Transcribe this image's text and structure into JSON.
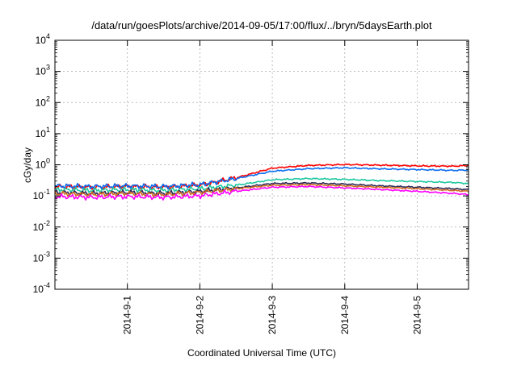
{
  "chart_data": {
    "type": "line",
    "title": "/data/run/goesPlots/archive/2014-09-05/17:00/flux/../bryn/5daysEarth.plot",
    "xlabel": "Coordinated Universal Time (UTC)",
    "ylabel": "cGy/day",
    "yscale": "log",
    "ylim": [
      0.0001,
      10000
    ],
    "xlim": [
      "2014-08-31 00:00",
      "2014-09-05 17:00"
    ],
    "grid": true,
    "legend": "none",
    "x_ticks": [
      "2014-9-1",
      "2014-9-2",
      "2014-9-3",
      "2014-9-4",
      "2014-9-5"
    ],
    "y_ticks": [
      {
        "value": 0.0001,
        "base": "10",
        "exp": "-4"
      },
      {
        "value": 0.001,
        "base": "10",
        "exp": "-3"
      },
      {
        "value": 0.01,
        "base": "10",
        "exp": "-2"
      },
      {
        "value": 0.1,
        "base": "10",
        "exp": "-1"
      },
      {
        "value": 1,
        "base": "10",
        "exp": "0"
      },
      {
        "value": 10,
        "base": "10",
        "exp": "1"
      },
      {
        "value": 100,
        "base": "10",
        "exp": "2"
      },
      {
        "value": 1000,
        "base": "10",
        "exp": "3"
      },
      {
        "value": 10000,
        "base": "10",
        "exp": "4"
      }
    ],
    "series": [
      {
        "color": "#ff0000",
        "x": [
          "2014-08-31 00:00",
          "2014-08-31 12:00",
          "2014-09-01 00:00",
          "2014-09-01 12:00",
          "2014-09-02 00:00",
          "2014-09-02 12:00",
          "2014-09-03 00:00",
          "2014-09-03 12:00",
          "2014-09-04 00:00",
          "2014-09-04 12:00",
          "2014-09-05 00:00",
          "2014-09-05 12:00",
          "2014-09-05 17:00"
        ],
        "values": [
          0.2,
          0.19,
          0.2,
          0.19,
          0.22,
          0.38,
          0.78,
          0.95,
          1.02,
          0.97,
          0.92,
          0.9,
          0.95
        ]
      },
      {
        "color": "#0a6cf0",
        "x": [
          "2014-08-31 00:00",
          "2014-08-31 12:00",
          "2014-09-01 00:00",
          "2014-09-01 12:00",
          "2014-09-02 00:00",
          "2014-09-02 12:00",
          "2014-09-03 00:00",
          "2014-09-03 12:00",
          "2014-09-04 00:00",
          "2014-09-04 12:00",
          "2014-09-05 00:00",
          "2014-09-05 12:00",
          "2014-09-05 17:00"
        ],
        "values": [
          0.21,
          0.2,
          0.21,
          0.2,
          0.23,
          0.36,
          0.62,
          0.75,
          0.8,
          0.74,
          0.7,
          0.66,
          0.68
        ]
      },
      {
        "color": "#1ec8a0",
        "x": [
          "2014-08-31 00:00",
          "2014-08-31 12:00",
          "2014-09-01 00:00",
          "2014-09-01 12:00",
          "2014-09-02 00:00",
          "2014-09-02 12:00",
          "2014-09-03 00:00",
          "2014-09-03 12:00",
          "2014-09-04 00:00",
          "2014-09-04 12:00",
          "2014-09-05 00:00",
          "2014-09-05 12:00",
          "2014-09-05 17:00"
        ],
        "values": [
          0.16,
          0.15,
          0.16,
          0.15,
          0.17,
          0.22,
          0.33,
          0.36,
          0.34,
          0.31,
          0.29,
          0.27,
          0.25
        ]
      },
      {
        "color": "#2a2a5a",
        "x": [
          "2014-08-31 00:00",
          "2014-08-31 12:00",
          "2014-09-01 00:00",
          "2014-09-01 12:00",
          "2014-09-02 00:00",
          "2014-09-02 12:00",
          "2014-09-03 00:00",
          "2014-09-03 12:00",
          "2014-09-04 00:00",
          "2014-09-04 12:00",
          "2014-09-05 00:00",
          "2014-09-05 12:00",
          "2014-09-05 17:00"
        ],
        "values": [
          0.13,
          0.12,
          0.13,
          0.12,
          0.14,
          0.18,
          0.25,
          0.26,
          0.24,
          0.21,
          0.19,
          0.17,
          0.16
        ]
      },
      {
        "color": "#d06a20",
        "x": [
          "2014-08-31 00:00",
          "2014-08-31 12:00",
          "2014-09-01 00:00",
          "2014-09-01 12:00",
          "2014-09-02 00:00",
          "2014-09-02 12:00",
          "2014-09-03 00:00",
          "2014-09-03 12:00",
          "2014-09-04 00:00",
          "2014-09-04 12:00",
          "2014-09-05 00:00",
          "2014-09-05 12:00",
          "2014-09-05 17:00"
        ],
        "values": [
          0.12,
          0.11,
          0.12,
          0.11,
          0.13,
          0.17,
          0.22,
          0.23,
          0.21,
          0.19,
          0.17,
          0.15,
          0.14
        ]
      },
      {
        "color": "#ff00ff",
        "x": [
          "2014-08-31 00:00",
          "2014-08-31 12:00",
          "2014-09-01 00:00",
          "2014-09-01 12:00",
          "2014-09-02 00:00",
          "2014-09-02 12:00",
          "2014-09-03 00:00",
          "2014-09-03 12:00",
          "2014-09-04 00:00",
          "2014-09-04 12:00",
          "2014-09-05 00:00",
          "2014-09-05 12:00",
          "2014-09-05 17:00"
        ],
        "values": [
          0.095,
          0.09,
          0.095,
          0.09,
          0.1,
          0.14,
          0.19,
          0.2,
          0.18,
          0.16,
          0.14,
          0.12,
          0.11
        ]
      }
    ]
  }
}
